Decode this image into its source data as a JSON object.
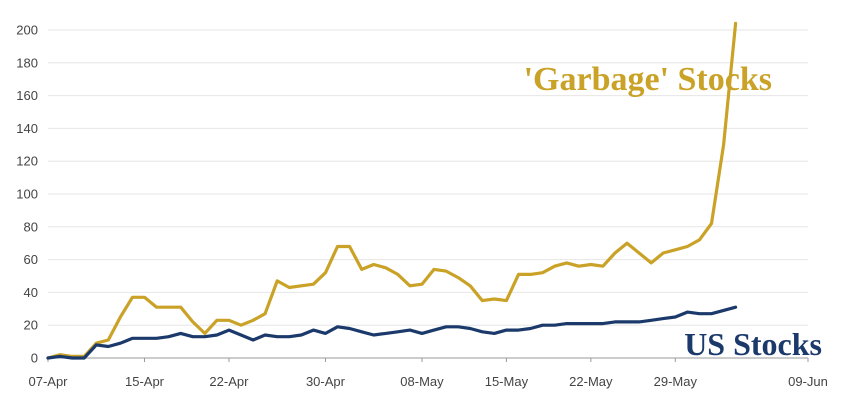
{
  "chart_data": {
    "type": "line",
    "title": "",
    "xlabel": "",
    "ylabel": "",
    "ylim": [
      0,
      200
    ],
    "yticks": [
      0,
      20,
      40,
      60,
      80,
      100,
      120,
      140,
      160,
      180,
      200
    ],
    "grid": "horizontal",
    "x_tick_labels": [
      "07-Apr",
      "15-Apr",
      "22-Apr",
      "30-Apr",
      "08-May",
      "15-May",
      "22-May",
      "29-May",
      "09-Jun"
    ],
    "x_start_tick": "07-Apr",
    "x_end_tick": "09-Jun",
    "series": [
      {
        "name": "'Garbage' Stocks",
        "color": "#c9a227",
        "label_position": "upper-right",
        "points": [
          [
            "07-Apr",
            0
          ],
          [
            "08-Apr",
            2
          ],
          [
            "09-Apr",
            1
          ],
          [
            "10-Apr",
            1
          ],
          [
            "11-Apr",
            9
          ],
          [
            "12-Apr",
            11
          ],
          [
            "13-Apr",
            25
          ],
          [
            "14-Apr",
            37
          ],
          [
            "15-Apr",
            37
          ],
          [
            "16-Apr",
            31
          ],
          [
            "17-Apr",
            31
          ],
          [
            "18-Apr",
            31
          ],
          [
            "19-Apr",
            22
          ],
          [
            "20-Apr",
            15
          ],
          [
            "21-Apr",
            23
          ],
          [
            "22-Apr",
            23
          ],
          [
            "23-Apr",
            20
          ],
          [
            "24-Apr",
            23
          ],
          [
            "25-Apr",
            27
          ],
          [
            "26-Apr",
            47
          ],
          [
            "27-Apr",
            43
          ],
          [
            "28-Apr",
            44
          ],
          [
            "29-Apr",
            45
          ],
          [
            "30-Apr",
            52
          ],
          [
            "01-May",
            68
          ],
          [
            "02-May",
            68
          ],
          [
            "03-May",
            54
          ],
          [
            "04-May",
            57
          ],
          [
            "05-May",
            55
          ],
          [
            "06-May",
            51
          ],
          [
            "07-May",
            44
          ],
          [
            "08-May",
            45
          ],
          [
            "09-May",
            54
          ],
          [
            "10-May",
            53
          ],
          [
            "11-May",
            49
          ],
          [
            "12-May",
            44
          ],
          [
            "13-May",
            35
          ],
          [
            "14-May",
            36
          ],
          [
            "15-May",
            35
          ],
          [
            "16-May",
            51
          ],
          [
            "17-May",
            51
          ],
          [
            "18-May",
            52
          ],
          [
            "19-May",
            56
          ],
          [
            "20-May",
            58
          ],
          [
            "21-May",
            56
          ],
          [
            "22-May",
            57
          ],
          [
            "23-May",
            56
          ],
          [
            "24-May",
            64
          ],
          [
            "25-May",
            70
          ],
          [
            "26-May",
            64
          ],
          [
            "27-May",
            58
          ],
          [
            "28-May",
            64
          ],
          [
            "29-May",
            66
          ],
          [
            "30-May",
            68
          ],
          [
            "31-May",
            72
          ],
          [
            "01-Jun",
            82
          ],
          [
            "02-Jun",
            130
          ],
          [
            "03-Jun",
            204
          ]
        ]
      },
      {
        "name": "US Stocks",
        "color": "#1b3a6b",
        "label_position": "lower-right",
        "points": [
          [
            "07-Apr",
            0
          ],
          [
            "08-Apr",
            1
          ],
          [
            "09-Apr",
            0
          ],
          [
            "10-Apr",
            0
          ],
          [
            "11-Apr",
            8
          ],
          [
            "12-Apr",
            7
          ],
          [
            "13-Apr",
            9
          ],
          [
            "14-Apr",
            12
          ],
          [
            "15-Apr",
            12
          ],
          [
            "16-Apr",
            12
          ],
          [
            "17-Apr",
            13
          ],
          [
            "18-Apr",
            15
          ],
          [
            "19-Apr",
            13
          ],
          [
            "20-Apr",
            13
          ],
          [
            "21-Apr",
            14
          ],
          [
            "22-Apr",
            17
          ],
          [
            "23-Apr",
            14
          ],
          [
            "24-Apr",
            11
          ],
          [
            "25-Apr",
            14
          ],
          [
            "26-Apr",
            13
          ],
          [
            "27-Apr",
            13
          ],
          [
            "28-Apr",
            14
          ],
          [
            "29-Apr",
            17
          ],
          [
            "30-Apr",
            15
          ],
          [
            "01-May",
            19
          ],
          [
            "02-May",
            18
          ],
          [
            "03-May",
            16
          ],
          [
            "04-May",
            14
          ],
          [
            "05-May",
            15
          ],
          [
            "06-May",
            16
          ],
          [
            "07-May",
            17
          ],
          [
            "08-May",
            15
          ],
          [
            "09-May",
            17
          ],
          [
            "10-May",
            19
          ],
          [
            "11-May",
            19
          ],
          [
            "12-May",
            18
          ],
          [
            "13-May",
            16
          ],
          [
            "14-May",
            15
          ],
          [
            "15-May",
            17
          ],
          [
            "16-May",
            17
          ],
          [
            "17-May",
            18
          ],
          [
            "18-May",
            20
          ],
          [
            "19-May",
            20
          ],
          [
            "20-May",
            21
          ],
          [
            "21-May",
            21
          ],
          [
            "22-May",
            21
          ],
          [
            "23-May",
            21
          ],
          [
            "24-May",
            22
          ],
          [
            "25-May",
            22
          ],
          [
            "26-May",
            22
          ],
          [
            "27-May",
            23
          ],
          [
            "28-May",
            24
          ],
          [
            "29-May",
            25
          ],
          [
            "30-May",
            28
          ],
          [
            "31-May",
            27
          ],
          [
            "01-Jun",
            27
          ],
          [
            "02-Jun",
            29
          ],
          [
            "03-Jun",
            31
          ]
        ]
      }
    ]
  }
}
